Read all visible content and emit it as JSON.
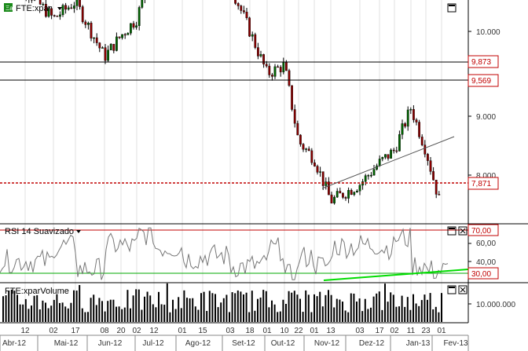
{
  "price_panel": {
    "symbol_label": "FTE:xpar",
    "logo_text": "Ξa",
    "y_ticks": [
      "10.000",
      "9.000",
      "8.000"
    ],
    "levels": [
      {
        "value": 9873,
        "label": "9,873",
        "style": "black"
      },
      {
        "value": 9569,
        "label": "9,569",
        "style": "black"
      },
      {
        "value": 7871,
        "label": "7,871",
        "style": "red"
      }
    ]
  },
  "rsi_panel": {
    "title": "RSI 14 Suavizado",
    "levels": [
      {
        "value": 70,
        "label": "70,00"
      },
      {
        "value": 30,
        "label": "30,00"
      }
    ],
    "y_ticks": [
      "60,00",
      "40,00"
    ]
  },
  "volume_panel": {
    "title": "FTE:xparVolume",
    "y_tick": "10.000.000"
  },
  "x_axis": {
    "days": [
      "12",
      "02",
      "17",
      "08",
      "20",
      "02",
      "12",
      "01",
      "15",
      "03",
      "18",
      "01",
      "10",
      "22",
      "01",
      "13",
      "03",
      "17",
      "02",
      "11",
      "23",
      "01"
    ],
    "months": [
      "Abr-12",
      "Mai-12",
      "Jun-12",
      "Jul-12",
      "Ago-12",
      "Set-12",
      "Out-12",
      "Nov-12",
      "Dez-12",
      "Jan-13",
      "Fev-13"
    ]
  },
  "colors": {
    "up_candle": "#006400",
    "down_candle": "#8b0000",
    "red_level": "#c00000",
    "trendline": "#555555",
    "rsi_green": "#00cc00",
    "rsi_line": "#777777"
  },
  "chart_data": {
    "type": "candlestick",
    "approx_close_path": {
      "dates": [
        "2012-04-12",
        "2012-05-02",
        "2012-05-17",
        "2012-06-08",
        "2012-06-20",
        "2012-07-02",
        "2012-07-12",
        "2012-08-01",
        "2012-08-15",
        "2012-09-03",
        "2012-09-18",
        "2012-10-01",
        "2012-10-10",
        "2012-10-22",
        "2012-11-01",
        "2012-11-13",
        "2012-12-03",
        "2012-12-17",
        "2013-01-02",
        "2013-01-11",
        "2013-01-23",
        "2013-02-01"
      ],
      "close": [
        10500,
        10150,
        10350,
        9700,
        9950,
        10150,
        10800,
        10950,
        10700,
        10550,
        10000,
        9500,
        9600,
        8700,
        8500,
        8000,
        8200,
        8450,
        8600,
        9100,
        8600,
        7900
      ]
    },
    "rsi": {
      "period": 14,
      "levels": [
        70,
        30
      ],
      "ylim": [
        20,
        80
      ]
    }
  }
}
